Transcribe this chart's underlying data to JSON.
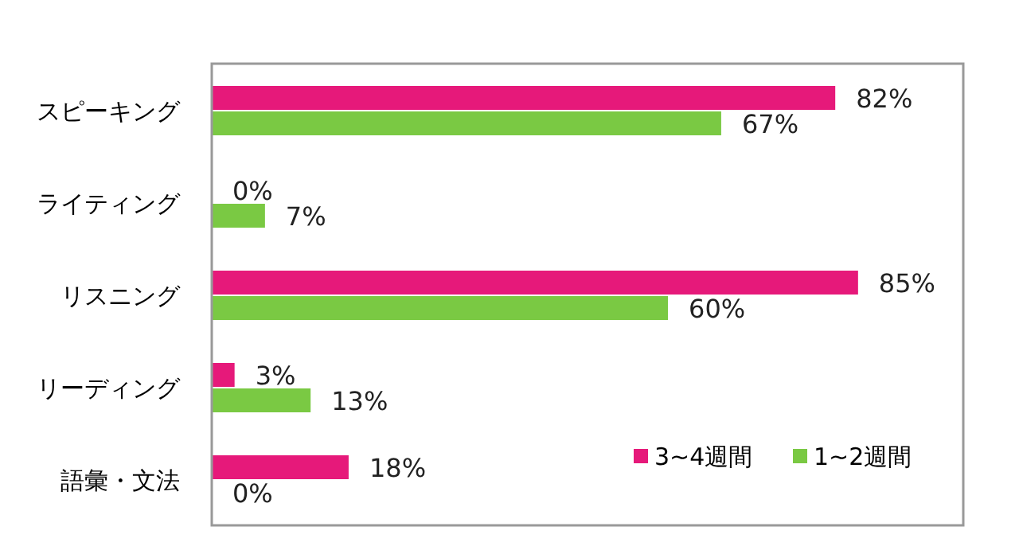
{
  "chart_data": {
    "type": "bar",
    "orientation": "horizontal",
    "categories": [
      "スピーキング",
      "ライティング",
      "リスニング",
      "リーディング",
      "語彙・文法"
    ],
    "series": [
      {
        "name": "3~4週間",
        "color": "#e6197a",
        "values": [
          82,
          0,
          85,
          3,
          18
        ],
        "value_labels": [
          "82%",
          "0%",
          "85%",
          "3%",
          "18%"
        ]
      },
      {
        "name": "1~2週間",
        "color": "#7ac943",
        "values": [
          67,
          7,
          60,
          13,
          0
        ],
        "value_labels": [
          "67%",
          "7%",
          "60%",
          "13%",
          "0%"
        ]
      }
    ],
    "legend": "bottom right"
  }
}
